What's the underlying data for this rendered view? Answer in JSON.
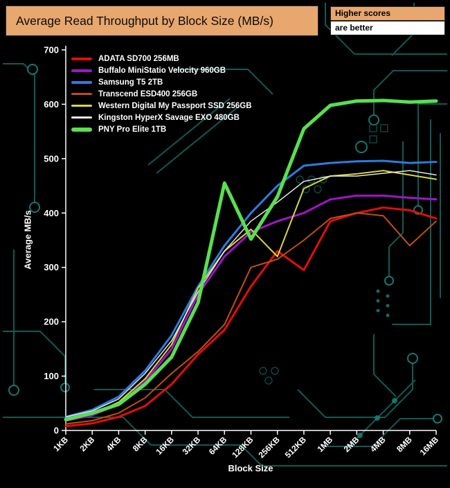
{
  "header": {
    "title": "Average Read Throughput by Block Size (MB/s)",
    "note_top": "Higher scores",
    "note_bottom": "are better"
  },
  "colors": {
    "background": "#000000",
    "title_bg": "#e7a76f",
    "note_top_bg": "#e7a76f",
    "note_bottom_bg": "#ffffff",
    "circuit_trace": "#17867e",
    "axis": "#ffffff"
  },
  "chart_data": {
    "type": "line",
    "title": "Average Read Throughput by Block Size (MB/s)",
    "xlabel": "Block Size",
    "ylabel": "Average MB/s",
    "ylim": [
      0,
      700
    ],
    "ytick_step": 100,
    "grid": false,
    "legend_position": "top-left",
    "categories": [
      "1KB",
      "2KB",
      "4KB",
      "8KB",
      "16KB",
      "32KB",
      "64KB",
      "128KB",
      "256KB",
      "512KB",
      "1MB",
      "2MB",
      "4MB",
      "8MB",
      "16MB"
    ],
    "series": [
      {
        "name": "ADATA SD700 256MB",
        "color": "#e60c0c",
        "width": 3,
        "values": [
          8,
          13,
          25,
          45,
          85,
          140,
          185,
          265,
          330,
          295,
          385,
          400,
          410,
          405,
          390
        ]
      },
      {
        "name": "Buffalo MiniStatio Velocity 960GB",
        "color": "#a214c9",
        "width": 3,
        "values": [
          18,
          28,
          48,
          90,
          150,
          250,
          320,
          365,
          385,
          400,
          425,
          432,
          432,
          428,
          425
        ]
      },
      {
        "name": "Samsung T5 2TB",
        "color": "#2b7de0",
        "width": 3,
        "values": [
          25,
          38,
          62,
          110,
          175,
          265,
          340,
          400,
          450,
          487,
          492,
          495,
          496,
          492,
          494
        ]
      },
      {
        "name": "Transcend ESD400 256GB",
        "color": "#c2500a",
        "width": 2,
        "values": [
          12,
          18,
          32,
          60,
          105,
          145,
          195,
          300,
          315,
          350,
          390,
          400,
          395,
          340,
          385
        ]
      },
      {
        "name": "Western Digital My Passport SSD 256GB",
        "color": "#d8d840",
        "width": 2,
        "values": [
          20,
          30,
          52,
          95,
          158,
          262,
          330,
          370,
          320,
          445,
          468,
          472,
          478,
          470,
          462
        ]
      },
      {
        "name": "Kingston HyperX Savage EXO 480GB",
        "color": "#e6e6e6",
        "width": 1.5,
        "values": [
          25,
          36,
          58,
          105,
          165,
          255,
          330,
          385,
          420,
          458,
          468,
          468,
          473,
          478,
          470
        ]
      },
      {
        "name": "PNY Pro Elite 1TB",
        "color": "#58e04e",
        "width": 5,
        "values": [
          20,
          32,
          48,
          85,
          135,
          235,
          455,
          352,
          430,
          555,
          598,
          606,
          607,
          604,
          606
        ]
      }
    ]
  }
}
